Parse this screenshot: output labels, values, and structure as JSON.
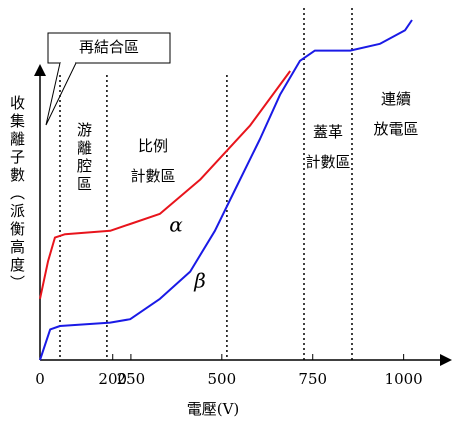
{
  "chart_data": {
    "type": "line",
    "y_label": "收集離子數（派衡高度）",
    "x_label": "電壓(V)",
    "xlim": [
      0,
      1100
    ],
    "xticks": [
      0,
      200,
      250,
      500,
      750,
      1000
    ],
    "ylim": [
      0,
      100
    ],
    "series": [
      {
        "name": "α",
        "color": "#e8141c",
        "x": [
          0,
          22,
          41,
          69,
          193,
          248,
          330,
          440,
          578,
          688
        ],
        "values": [
          18,
          29,
          36,
          37,
          38,
          40,
          43,
          53,
          69,
          85
        ]
      },
      {
        "name": "β",
        "color": "#1a1ae6",
        "x": [
          0,
          28,
          55,
          193,
          248,
          330,
          413,
          481,
          536,
          605,
          660,
          715,
          756,
          853,
          935,
          1004,
          1023
        ],
        "values": [
          0,
          9,
          10,
          11,
          12,
          18,
          26,
          38,
          50,
          65,
          78,
          88,
          91,
          91,
          93,
          97,
          100
        ]
      }
    ],
    "boundaries": [
      55,
      184,
      514,
      726,
      858
    ],
    "regions": [
      {
        "lines": [
          "游離腔區"
        ]
      },
      {
        "lines": [
          "比例",
          "計數區"
        ]
      },
      {
        "lines": [
          "蓋革",
          "計數區"
        ]
      },
      {
        "lines": [
          "連續",
          "放電區"
        ]
      }
    ],
    "annotation": "再結合區"
  }
}
